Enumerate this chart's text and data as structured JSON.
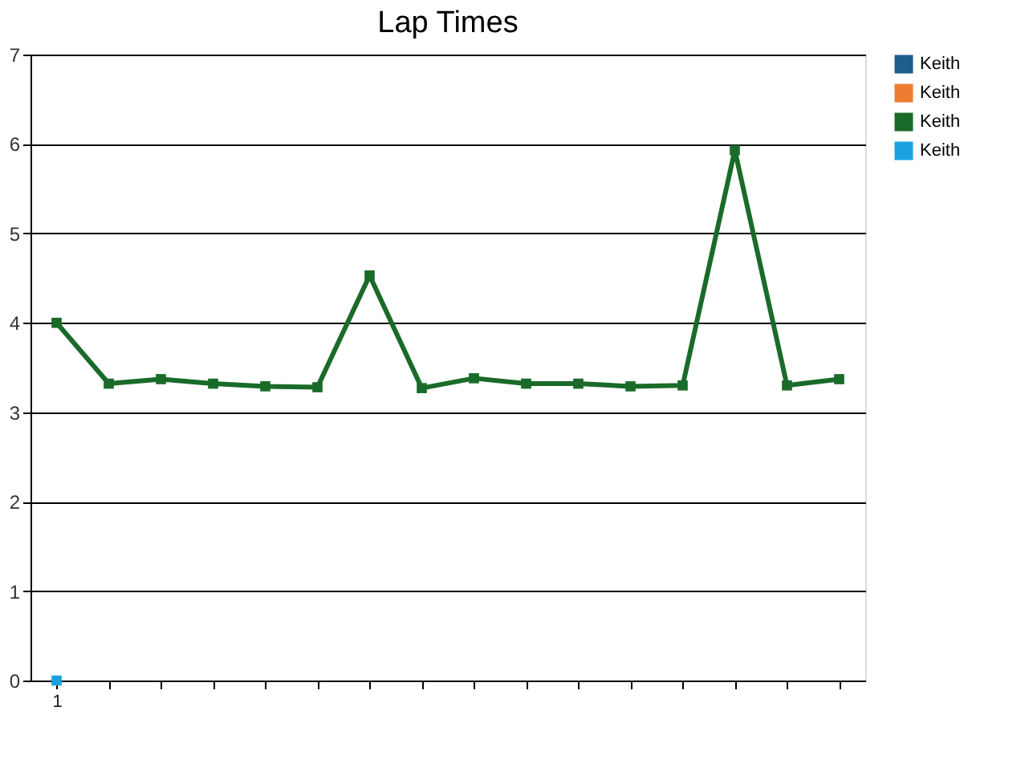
{
  "chart_data": {
    "type": "line",
    "title": "Lap Times",
    "categories": [
      "1",
      null,
      null,
      null,
      null,
      null,
      null,
      null,
      null,
      null,
      null,
      null,
      null,
      null,
      null,
      null
    ],
    "series": [
      {
        "name": "Keith",
        "color": "#1f5f8b",
        "values": [
          null,
          null,
          null,
          null,
          null,
          null,
          null,
          null,
          null,
          null,
          null,
          null,
          null,
          null,
          null,
          null
        ]
      },
      {
        "name": "Keith",
        "color": "#ed7d31",
        "values": [
          null,
          null,
          null,
          null,
          null,
          null,
          null,
          null,
          null,
          null,
          null,
          null,
          null,
          null,
          null,
          null
        ]
      },
      {
        "name": "Keith",
        "color": "#1a6b2a",
        "values": [
          4.0,
          3.32,
          3.37,
          3.32,
          3.29,
          3.28,
          4.53,
          3.27,
          3.38,
          3.32,
          3.32,
          3.29,
          3.3,
          5.93,
          3.3,
          3.37
        ]
      },
      {
        "name": "Keith",
        "color": "#1ba1e2",
        "values": [
          0,
          null,
          null,
          null,
          null,
          null,
          null,
          null,
          null,
          null,
          null,
          null,
          null,
          null,
          null,
          null
        ]
      }
    ],
    "ylim": [
      0,
      7
    ],
    "yticks": [
      0,
      1,
      2,
      3,
      4,
      5,
      6,
      7
    ],
    "grid": "y",
    "legend": "right",
    "marker": "square",
    "line_style": "solid"
  }
}
